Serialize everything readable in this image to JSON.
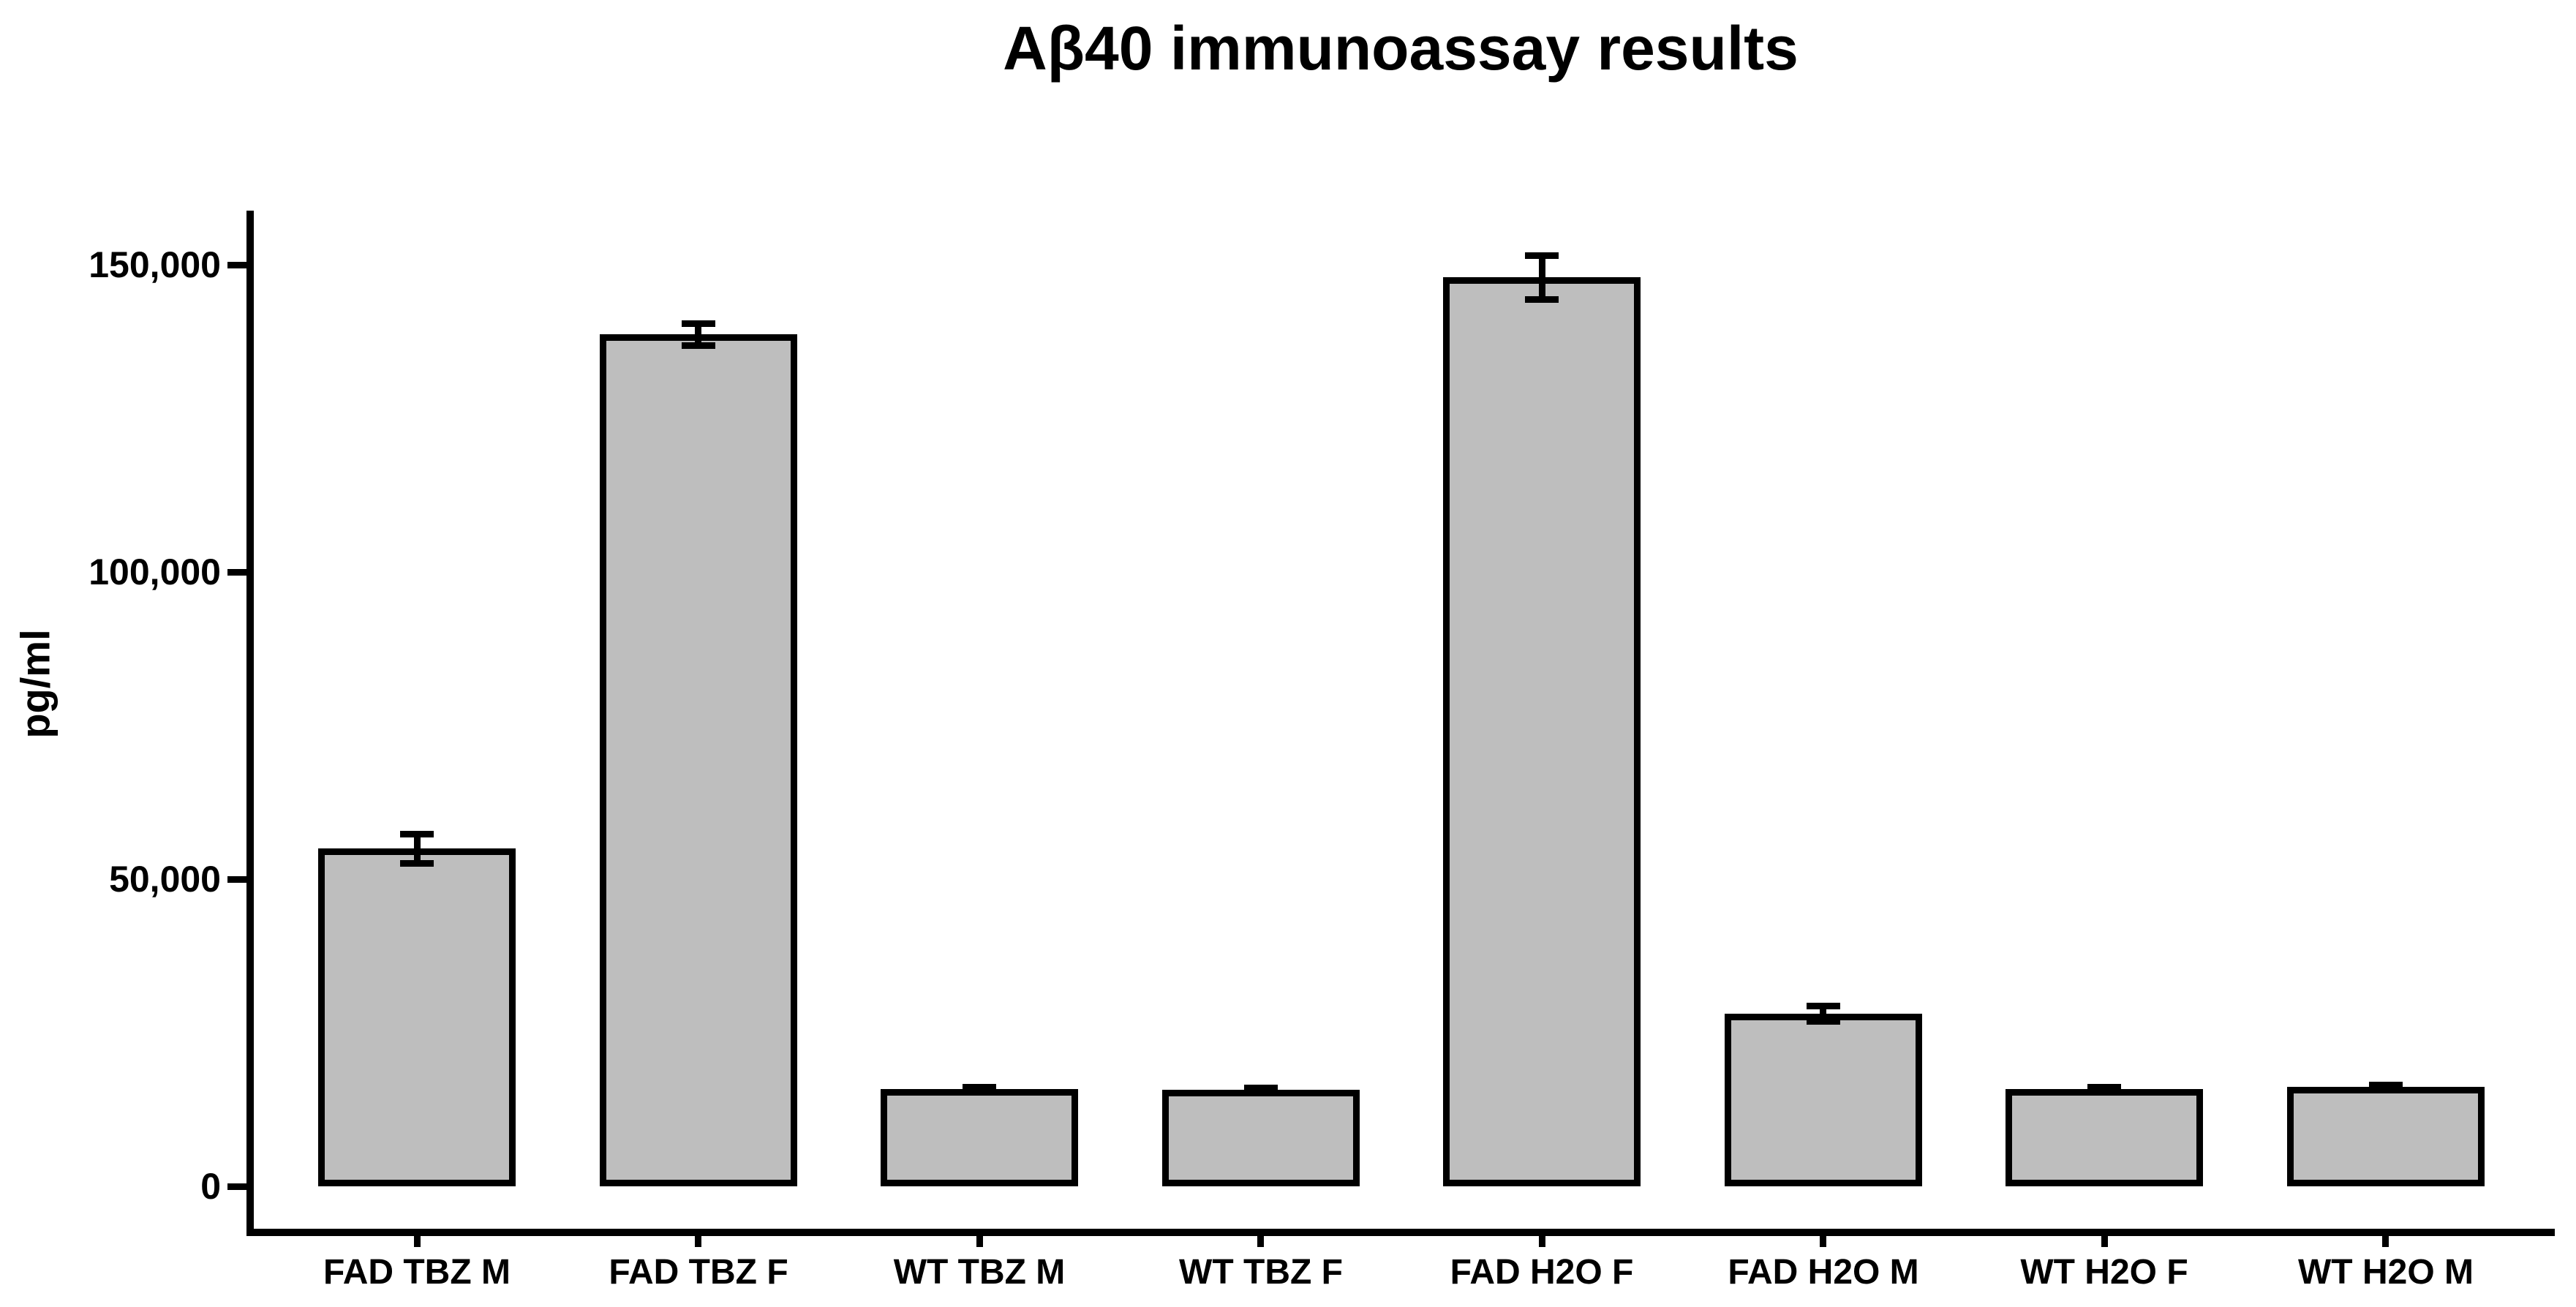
{
  "title": "Aβ40 immunoassay results",
  "chart_data": {
    "type": "bar",
    "title": "Aβ40 immunoassay results",
    "xlabel": "",
    "ylabel": "pg/ml",
    "categories": [
      "FAD TBZ M",
      "FAD TBZ F",
      "WT TBZ M",
      "WT TBZ F",
      "FAD H2O F",
      "FAD H2O M",
      "WT H2O F",
      "WT H2O M"
    ],
    "values": [
      55000,
      138700,
      15800,
      15700,
      148000,
      28100,
      15800,
      16200
    ],
    "errors": [
      2400,
      1800,
      400,
      400,
      3600,
      1250,
      400,
      400
    ],
    "error_type": "SEM",
    "yticks": [
      0,
      50000,
      100000,
      150000
    ],
    "ytick_labels": [
      "0",
      "50,000",
      "100,000",
      "150,000"
    ],
    "ylim": [
      0,
      158800
    ],
    "grid": false,
    "legend_position": "none",
    "bar_color": "#bebebe",
    "bar_border_color": "#000000",
    "axis_color": "#000000",
    "background_color": "#ffffff"
  }
}
